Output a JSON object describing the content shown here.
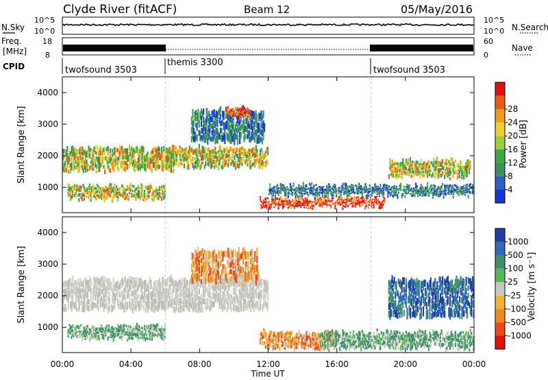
{
  "header": {
    "station": "Clyde River (fitACF)",
    "beam": "Beam 12",
    "date": "05/May/2016"
  },
  "nsky_panel": {
    "left_label": "N.Sky",
    "left_ticks": [
      "10^5",
      "10^0"
    ],
    "right_ticks": [
      "10^5",
      "10^0"
    ],
    "right_label": "N.Search"
  },
  "freq_panel": {
    "left_label_1": "Freq.",
    "left_label_2": "[MHz]",
    "left_ticks": [
      "18",
      "8"
    ],
    "right_ticks": [
      "60",
      "0"
    ],
    "right_label": "Nave"
  },
  "cpid": {
    "label": "CPID",
    "segments": [
      {
        "name": "twofsound 3503",
        "start_hour": 0
      },
      {
        "name": "themis 3300",
        "start_hour": 6
      },
      {
        "name": "twofsound 3503",
        "start_hour": 18
      }
    ]
  },
  "chart_data": [
    {
      "type": "heatmap",
      "name": "power",
      "ylabel": "Slant Range [km]",
      "xlabel": "",
      "xlim_hours": [
        0,
        24
      ],
      "ylim": [
        200,
        4500
      ],
      "y_ticks": [
        "1000",
        "2000",
        "3000",
        "4000"
      ],
      "colorbar_label": "Power [dB]",
      "colorbar_ticks": [
        "4",
        "8",
        "12",
        "16",
        "20",
        "24",
        "28"
      ],
      "colorbar_colors": [
        "#1a36d4",
        "#2f5fc9",
        "#3d8f5c",
        "#3aa83e",
        "#9ccd3a",
        "#f2cf26",
        "#f29a1e",
        "#ec5a16",
        "#e2120f"
      ],
      "regions": [
        {
          "t0": 0.0,
          "t1": 6.5,
          "r0": 1500,
          "r1": 2300,
          "level": "mid"
        },
        {
          "t0": 0.3,
          "t1": 6.0,
          "r0": 600,
          "r1": 1100,
          "level": "mid"
        },
        {
          "t0": 6.0,
          "t1": 12.0,
          "r0": 1600,
          "r1": 2300,
          "level": "mid"
        },
        {
          "t0": 7.5,
          "t1": 11.8,
          "r0": 2400,
          "r1": 3500,
          "level": "low"
        },
        {
          "t0": 9.5,
          "t1": 11.0,
          "r0": 3200,
          "r1": 3550,
          "level": "high"
        },
        {
          "t0": 11.5,
          "t1": 18.8,
          "r0": 350,
          "r1": 700,
          "level": "high"
        },
        {
          "t0": 12.0,
          "t1": 24.0,
          "r0": 700,
          "r1": 1100,
          "level": "low"
        },
        {
          "t0": 19.0,
          "t1": 23.8,
          "r0": 1300,
          "r1": 1900,
          "level": "mid"
        }
      ]
    },
    {
      "type": "heatmap",
      "name": "velocity",
      "ylabel": "Slant Range [km]",
      "xlabel": "Time UT",
      "xlim_hours": [
        0,
        24
      ],
      "ylim": [
        200,
        4500
      ],
      "y_ticks": [
        "1000",
        "2000",
        "3000",
        "4000"
      ],
      "x_ticks": [
        "00:00",
        "04:00",
        "08:00",
        "12:00",
        "16:00",
        "20:00",
        "00:00"
      ],
      "colorbar_label": "Velocity [m s⁻¹]",
      "colorbar_ticks": [
        "1000",
        "500",
        "100",
        "25",
        "-25",
        "-100",
        "-500",
        "-1000"
      ],
      "colorbar_colors": [
        "#1f3fa8",
        "#2e6db8",
        "#3f8f6d",
        "#5ab85a",
        "#c8c8c0",
        "#f0b43a",
        "#f08a1e",
        "#ec4a16",
        "#e0100f"
      ],
      "regions": [
        {
          "t0": 0.0,
          "t1": 12.0,
          "r0": 1500,
          "r1": 2600,
          "level": "ground"
        },
        {
          "t0": 0.3,
          "t1": 6.0,
          "r0": 600,
          "r1": 1100,
          "level": "green"
        },
        {
          "t0": 7.5,
          "t1": 11.5,
          "r0": 2400,
          "r1": 3500,
          "level": "orange"
        },
        {
          "t0": 11.5,
          "t1": 16.0,
          "r0": 300,
          "r1": 900,
          "level": "orange"
        },
        {
          "t0": 15.0,
          "t1": 24.0,
          "r0": 300,
          "r1": 900,
          "level": "green"
        },
        {
          "t0": 19.0,
          "t1": 24.0,
          "r0": 1300,
          "r1": 2600,
          "level": "blue"
        }
      ]
    }
  ]
}
